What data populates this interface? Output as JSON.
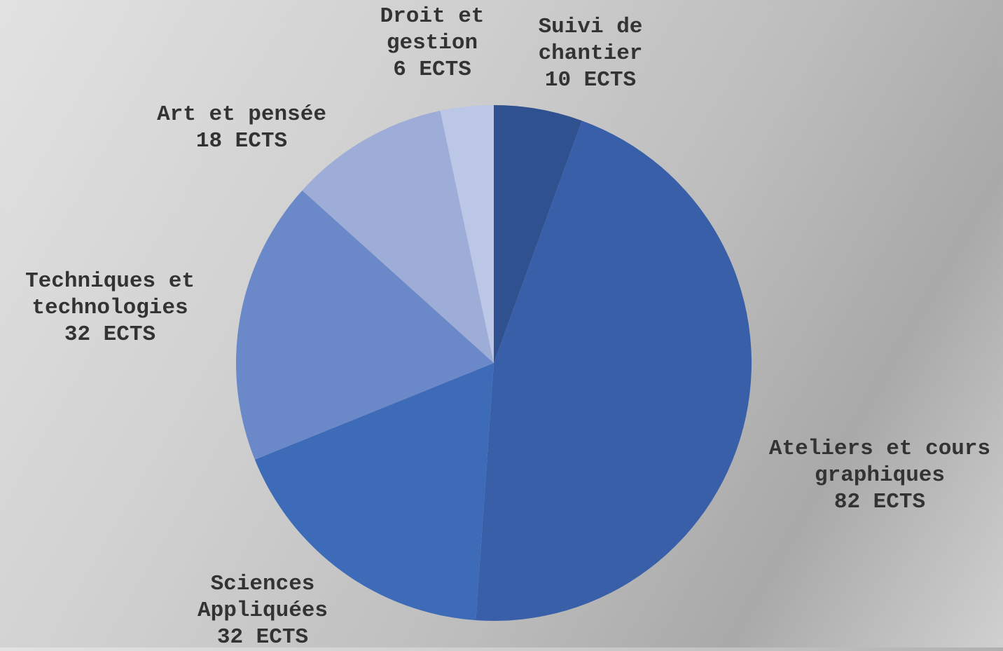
{
  "chart_data": {
    "type": "pie",
    "categories": [
      "Suivi de chantier",
      "Ateliers et cours graphiques",
      "Sciences Appliquées",
      "Techniques et technologies",
      "Art et pensée",
      "Droit et gestion"
    ],
    "values": [
      10,
      82,
      32,
      32,
      18,
      6
    ],
    "value_labels": [
      "10 ECTS",
      "82 ECTS",
      "32 ECTS",
      "32 ECTS",
      "18 ECTS",
      "6 ECTS"
    ],
    "colors": [
      "#2f518f",
      "#385fa8",
      "#3d6bb8",
      "#6b88c9",
      "#9eadd8",
      "#bcc7e7"
    ]
  }
}
